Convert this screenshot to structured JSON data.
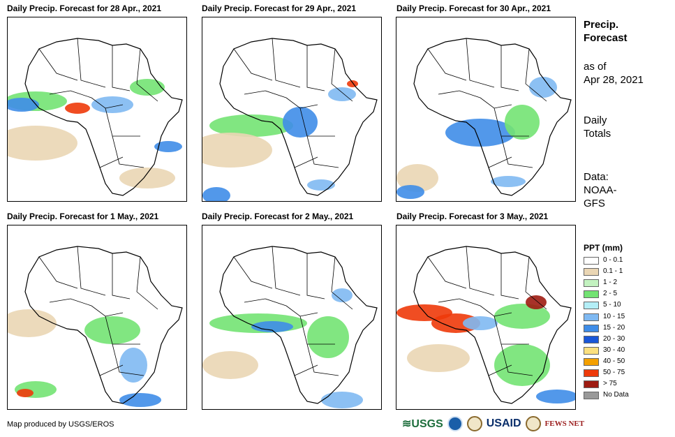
{
  "panels": [
    {
      "title": "Daily Precip. Forecast for 28 Apr., 2021"
    },
    {
      "title": "Daily Precip. Forecast for 29 Apr., 2021"
    },
    {
      "title": "Daily Precip. Forecast for 30 Apr., 2021"
    },
    {
      "title": "Daily Precip. Forecast for 1 May., 2021"
    },
    {
      "title": "Daily Precip. Forecast for 2 May., 2021"
    },
    {
      "title": "Daily Precip. Forecast for 3 May., 2021"
    }
  ],
  "side": {
    "title_line1": "Precip.",
    "title_line2": "Forecast",
    "asof_line1": "as of",
    "asof_line2": "Apr 28, 2021",
    "totals_line1": "Daily",
    "totals_line2": "Totals",
    "data_line1": "Data:",
    "data_line2": "NOAA-",
    "data_line3": "GFS"
  },
  "legend": {
    "title": "PPT (mm)",
    "items": [
      {
        "label": "0 - 0.1",
        "color": "#ffffff"
      },
      {
        "label": "0.1 - 1",
        "color": "#ead6b4"
      },
      {
        "label": "1 - 2",
        "color": "#c3f2c0"
      },
      {
        "label": "2 - 5",
        "color": "#73e373"
      },
      {
        "label": "5 - 10",
        "color": "#b3eef7"
      },
      {
        "label": "10 - 15",
        "color": "#7fb9f2"
      },
      {
        "label": "15 - 20",
        "color": "#3f8de8"
      },
      {
        "label": "20 - 30",
        "color": "#1a57d8"
      },
      {
        "label": "30 - 40",
        "color": "#fbe07f"
      },
      {
        "label": "40 - 50",
        "color": "#f4a000"
      },
      {
        "label": "50 - 75",
        "color": "#ee3a0a"
      },
      {
        "label": "> 75",
        "color": "#9e1c12"
      },
      {
        "label": "No Data",
        "color": "#999999"
      }
    ]
  },
  "credit": "Map produced by USGS/EROS",
  "logos": {
    "usgs": "≋USGS",
    "usaid": "USAID",
    "fews": "FEWS NET"
  }
}
